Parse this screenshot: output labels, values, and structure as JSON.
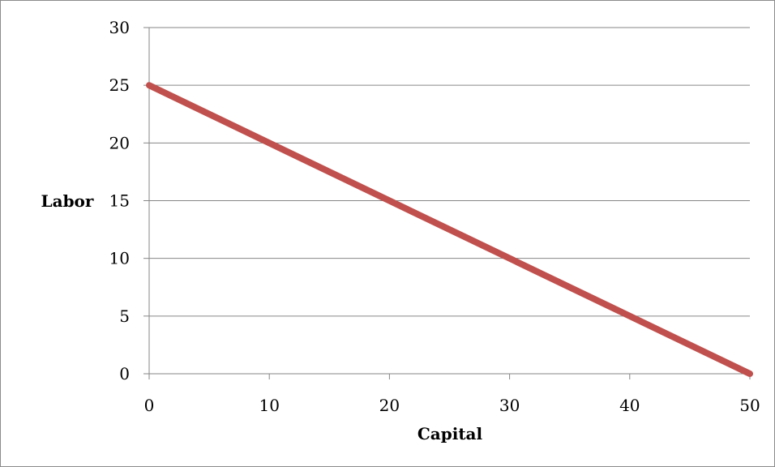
{
  "chart_data": {
    "type": "line",
    "title": "",
    "xlabel": "Capital",
    "ylabel": "Labor",
    "xlim": [
      0,
      50
    ],
    "ylim": [
      0,
      30
    ],
    "x_ticks": [
      "0",
      "10",
      "20",
      "30",
      "40",
      "50"
    ],
    "y_ticks": [
      "0",
      "5",
      "10",
      "15",
      "20",
      "25",
      "30"
    ],
    "grid": "horizontal",
    "legend": "none",
    "series": [
      {
        "x": [
          0,
          50
        ],
        "y": [
          25,
          0
        ],
        "color": "#c0504d"
      }
    ]
  },
  "colors": {
    "series": "#c0504d",
    "grid": "#868686",
    "axis": "#868686",
    "frame": "#8c8c8c"
  }
}
